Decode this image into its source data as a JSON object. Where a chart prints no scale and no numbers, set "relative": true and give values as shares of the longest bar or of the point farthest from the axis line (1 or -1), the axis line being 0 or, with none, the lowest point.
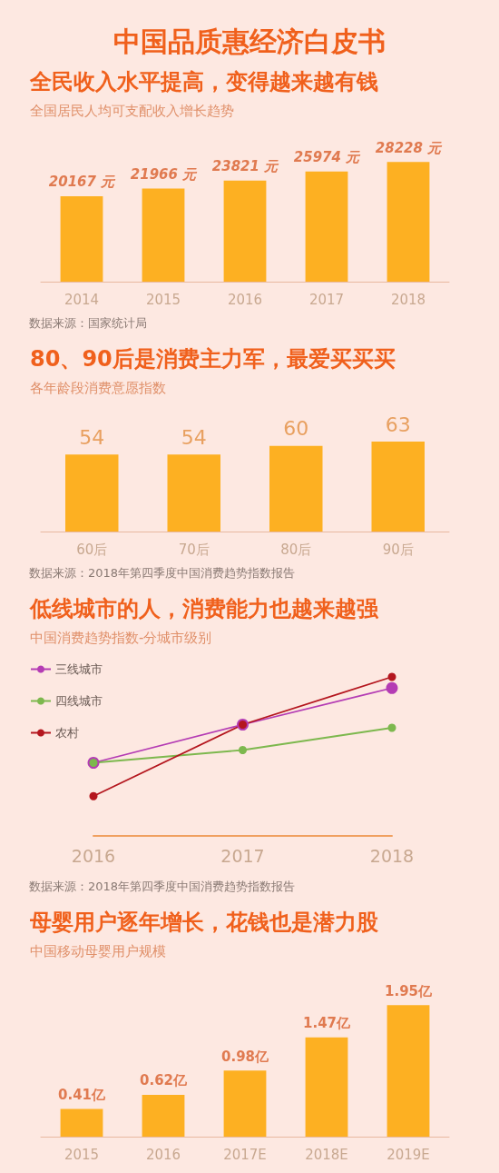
{
  "chart_data": [
    {
      "type": "bar",
      "title": "全民收入水平提高，变得越来越有钱",
      "subtitle": "全国居民人均可支配收入增长趋势",
      "annotations": [
        "中国品质惠经济白皮书",
        "数据来源：国家统计局"
      ],
      "categories": [
        "2014",
        "2015",
        "2016",
        "2017",
        "2018"
      ],
      "values": [
        20167,
        21966,
        23821,
        25974,
        28228
      ],
      "value_labels": [
        "20167 元",
        "21966 元",
        "23821 元",
        "25974 元",
        "28228 元"
      ],
      "color": "#fdb022",
      "grid": false,
      "legend": false
    },
    {
      "type": "bar",
      "title": "80、90后是消费主力军，最爱买买买",
      "subtitle": "各年龄段消费意愿指数",
      "annotations": [
        "数据来源：2018年第四季度中国消费趋势指数报告"
      ],
      "categories": [
        "60后",
        "70后",
        "80后",
        "90后"
      ],
      "values": [
        54,
        54,
        60,
        63
      ],
      "data_labels": true,
      "color": "#fdb022",
      "grid": false,
      "legend": false
    },
    {
      "type": "line",
      "title": "低线城市的人，消费能力也越来越强",
      "subtitle": "中国消费趋势指数-分城市级别",
      "annotations": [
        "数据来源：2018年第四季度中国消费趋势指数报告"
      ],
      "categories": [
        "2016",
        "2017",
        "2018"
      ],
      "relative": true,
      "marker": "circle",
      "legend": "top left",
      "grid": false,
      "series": [
        {
          "name": "三线城市",
          "color": "#b43cb4",
          "values": [
            0.46,
            0.7,
            0.93
          ]
        },
        {
          "name": "四线城市",
          "color": "#7db84e",
          "values": [
            0.46,
            0.54,
            0.68
          ]
        },
        {
          "name": "农村",
          "color": "#b4161e",
          "values": [
            0.25,
            0.7,
            1
          ]
        }
      ]
    },
    {
      "type": "bar",
      "title": "母婴用户逐年增长，花钱也是潜力股",
      "subtitle": "中国移动母婴用户规模",
      "categories": [
        "2015",
        "2016",
        "2017E",
        "2018E",
        "2019E"
      ],
      "values": [
        0.41,
        0.62,
        0.98,
        1.47,
        1.95
      ],
      "value_labels": [
        "0.41亿",
        "0.62亿",
        "0.98亿",
        "1.47亿",
        "1.95亿"
      ],
      "color": "#fdb022",
      "grid": false,
      "legend": false
    }
  ]
}
